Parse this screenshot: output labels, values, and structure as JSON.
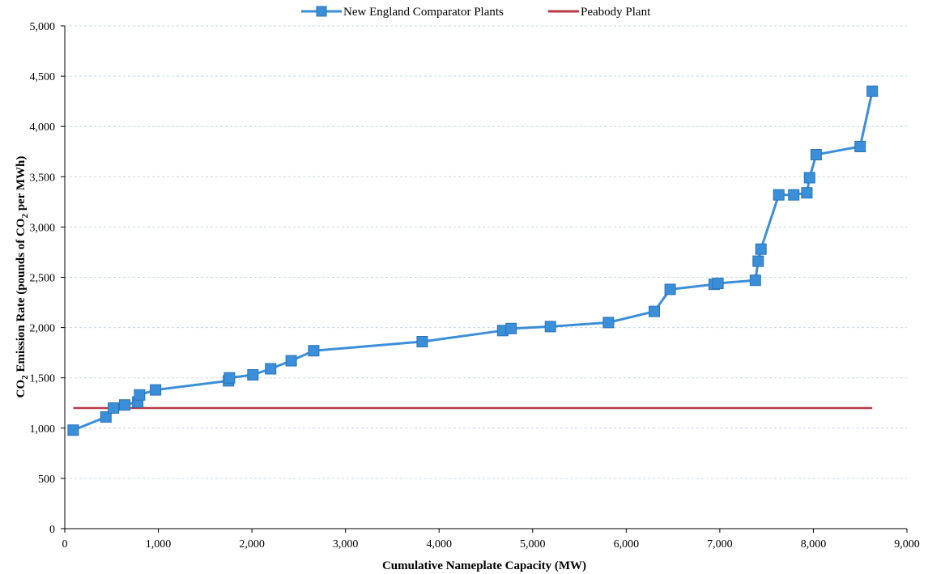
{
  "chart_data": {
    "type": "line",
    "title": "",
    "xlabel": "Cumulative Nameplate Capacity (MW)",
    "ylabel_parts": [
      "CO",
      "2",
      " Emission Rate (pounds of CO",
      "2",
      " per MWh)"
    ],
    "xlim": [
      0,
      9000
    ],
    "ylim": [
      0,
      5000
    ],
    "xticks": [
      0,
      1000,
      2000,
      3000,
      4000,
      5000,
      6000,
      7000,
      8000,
      9000
    ],
    "xtick_labels": [
      "0",
      "1,000",
      "2,000",
      "3,000",
      "4,000",
      "5,000",
      "6,000",
      "7,000",
      "8,000",
      "9,000"
    ],
    "yticks": [
      0,
      500,
      1000,
      1500,
      2000,
      2500,
      3000,
      3500,
      4000,
      4500,
      5000
    ],
    "ytick_labels": [
      "0",
      "500",
      "1,000",
      "1,500",
      "2,000",
      "2,500",
      "3,000",
      "3,500",
      "4,000",
      "4,500",
      "5,000"
    ],
    "grid": true,
    "legend_position": "top-center",
    "series": [
      {
        "name": "New England Comparator Plants",
        "color": "#3b8fd9",
        "marker": "square",
        "x": [
          90,
          440,
          520,
          640,
          780,
          800,
          970,
          1750,
          1760,
          2010,
          2200,
          2420,
          2660,
          3820,
          4680,
          4770,
          5190,
          5810,
          6300,
          6470,
          6940,
          6980,
          7380,
          7410,
          7440,
          7630,
          7790,
          7930,
          7960,
          8030,
          8500,
          8630
        ],
        "y": [
          980,
          1110,
          1200,
          1230,
          1260,
          1330,
          1380,
          1470,
          1500,
          1530,
          1590,
          1670,
          1770,
          1860,
          1970,
          1990,
          2010,
          2050,
          2160,
          2380,
          2430,
          2440,
          2470,
          2660,
          2780,
          3320,
          3320,
          3340,
          3490,
          3720,
          3800,
          4350
        ]
      },
      {
        "name": "Peabody Plant",
        "color": "#b83b44",
        "marker": "none",
        "x": [
          90,
          8630
        ],
        "y": [
          1200,
          1200
        ]
      }
    ]
  }
}
